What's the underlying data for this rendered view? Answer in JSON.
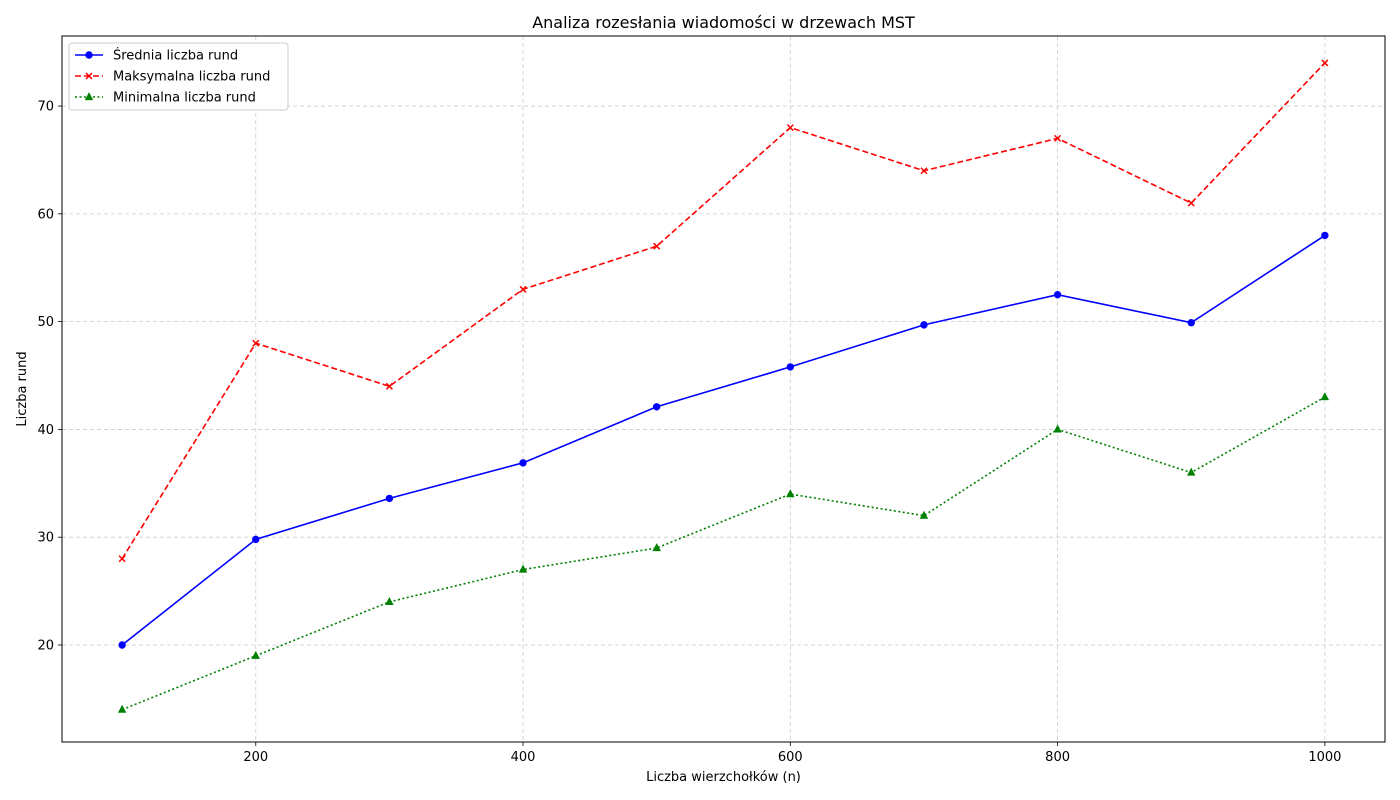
{
  "chart_data": {
    "type": "line",
    "title": "Analiza rozesłania wiadomości w drzewach MST",
    "xlabel": "Liczba wierzchołków (n)",
    "ylabel": "Liczba rund",
    "x": [
      100,
      200,
      300,
      400,
      500,
      600,
      700,
      800,
      900,
      1000
    ],
    "xlim": [
      55,
      1045
    ],
    "ylim": [
      11,
      76.5
    ],
    "x_ticks": [
      200,
      400,
      600,
      800,
      1000
    ],
    "y_ticks": [
      20,
      30,
      40,
      50,
      60,
      70
    ],
    "grid": true,
    "legend_position": "top-left",
    "series": [
      {
        "name": "Średnia liczba rund",
        "values": [
          20.0,
          29.8,
          33.6,
          36.9,
          42.1,
          45.8,
          49.7,
          52.5,
          49.9,
          58.0
        ],
        "color": "#0000ff",
        "linestyle": "solid",
        "marker": "circle"
      },
      {
        "name": "Maksymalna liczba rund",
        "values": [
          28,
          48,
          44,
          53,
          57,
          68,
          64,
          67,
          61,
          74
        ],
        "color": "#ff0000",
        "linestyle": "dashed",
        "marker": "x"
      },
      {
        "name": "Minimalna liczba rund",
        "values": [
          14,
          19,
          24,
          27,
          29,
          34,
          32,
          40,
          36,
          43
        ],
        "color": "#008000",
        "linestyle": "dotted",
        "marker": "triangle"
      }
    ]
  }
}
